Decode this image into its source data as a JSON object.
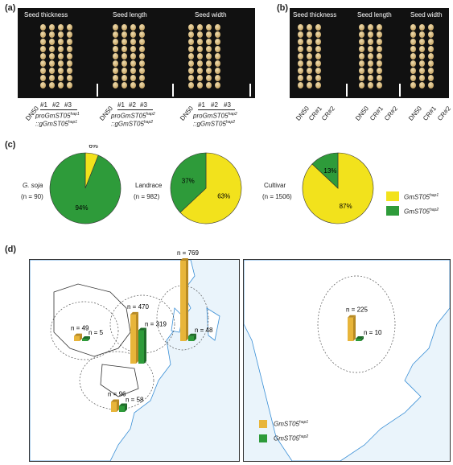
{
  "panel_labels": {
    "a": "(a)",
    "b": "(b)",
    "c": "(c)",
    "d": "(d)"
  },
  "panel_a": {
    "titles": [
      "Seed thickness",
      "Seed length",
      "Seed width"
    ],
    "lines": [
      "DN50",
      "#1",
      "#2",
      "#3"
    ],
    "construct_label": "proGmST05",
    "construct_sup": "hap1",
    "construct_sub_label": "::gGmST05",
    "construct_sub_sup": "hap1",
    "construct2_label": "proGmST05",
    "construct2_sup": "hap2",
    "construct2_sub_label": "::gGmST05",
    "construct2_sub_sup": "hap2"
  },
  "panel_b": {
    "titles": [
      "Seed thickness",
      "Seed length",
      "Seed width"
    ],
    "lines": [
      "DN50",
      "CR#1",
      "CR#2"
    ]
  },
  "panel_c": {
    "groups": [
      {
        "name": "G. soja",
        "italic": true,
        "n": "(n = 90)",
        "slices": [
          {
            "label": "6%",
            "value": 6
          },
          {
            "label": "94%",
            "value": 94
          }
        ]
      },
      {
        "name": "Landrace",
        "italic": false,
        "n": "(n = 982)",
        "slices": [
          {
            "label": "63%",
            "value": 63
          },
          {
            "label": "37%",
            "value": 37
          }
        ]
      },
      {
        "name": "Cultivar",
        "italic": false,
        "n": "(n = 1506)",
        "slices": [
          {
            "label": "87%",
            "value": 87
          },
          {
            "label": "13%",
            "value": 13
          }
        ]
      }
    ],
    "legend": [
      {
        "label": "GmST05",
        "sup": "hap1",
        "color": "#f2e21c"
      },
      {
        "label": "GmST05",
        "sup": "hap2",
        "color": "#2e9b3a"
      }
    ]
  },
  "panel_d": {
    "asia_bars": [
      {
        "hap1": "n = 49",
        "hap2": "n = 5",
        "hap1_value": 49,
        "hap2_value": 5
      },
      {
        "hap1": "n = 470",
        "hap2": "n = 319",
        "hap1_value": 470,
        "hap2_value": 319
      },
      {
        "hap1": "n = 769",
        "hap2": "n = 48",
        "hap1_value": 769,
        "hap2_value": 48
      },
      {
        "hap1": "n = 96",
        "hap2": "n = 58",
        "hap1_value": 96,
        "hap2_value": 58
      }
    ],
    "america_bar": {
      "hap1": "n = 225",
      "hap2": "n = 10",
      "hap1_value": 225,
      "hap2_value": 10
    },
    "legend": [
      {
        "label": "GmST05",
        "sup": "hap1",
        "color": "#e8b53a"
      },
      {
        "label": "GmST05",
        "sup": "hap2",
        "color": "#2e9b3a"
      }
    ]
  },
  "colors": {
    "hap1_pie": "#f2e21c",
    "hap2_pie": "#2e9b3a",
    "hap1_bar": "#e8b53a",
    "hap2_bar": "#2e9b3a",
    "sea": "#eaf4fb",
    "land": "#ffffff"
  }
}
